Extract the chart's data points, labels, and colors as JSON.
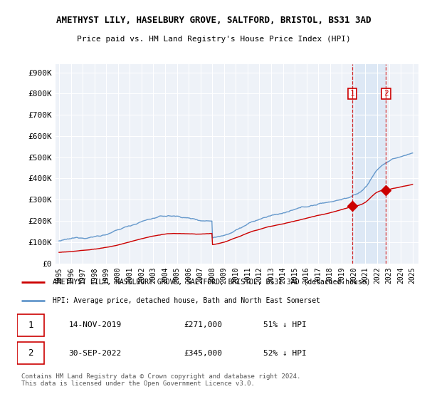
{
  "title": "AMETHYST LILY, HASELBURY GROVE, SALTFORD, BRISTOL, BS31 3AD",
  "subtitle": "Price paid vs. HM Land Registry's House Price Index (HPI)",
  "hpi_color": "#6699cc",
  "price_color": "#cc0000",
  "background_color": "#ffffff",
  "plot_bg_color": "#eef2f8",
  "shade_color": "#dde8f5",
  "grid_color": "#ffffff",
  "ylim": [
    0,
    900000
  ],
  "yticks": [
    0,
    100000,
    200000,
    300000,
    400000,
    500000,
    600000,
    700000,
    800000,
    900000
  ],
  "ytick_labels": [
    "£0",
    "£100K",
    "£200K",
    "£300K",
    "£400K",
    "£500K",
    "£600K",
    "£700K",
    "£800K",
    "£900K"
  ],
  "legend_line1": "AMETHYST LILY, HASELBURY GROVE, SALTFORD, BRISTOL, BS31 3AD (detached house)",
  "legend_line2": "HPI: Average price, detached house, Bath and North East Somerset",
  "sale1_date": "14-NOV-2019",
  "sale1_price": "£271,000",
  "sale1_hpi": "51% ↓ HPI",
  "sale2_date": "30-SEP-2022",
  "sale2_price": "£345,000",
  "sale2_hpi": "52% ↓ HPI",
  "footer": "Contains HM Land Registry data © Crown copyright and database right 2024.\nThis data is licensed under the Open Government Licence v3.0.",
  "sale1_year": 2019.87,
  "sale1_value": 271000,
  "sale2_year": 2022.75,
  "sale2_value": 345000
}
